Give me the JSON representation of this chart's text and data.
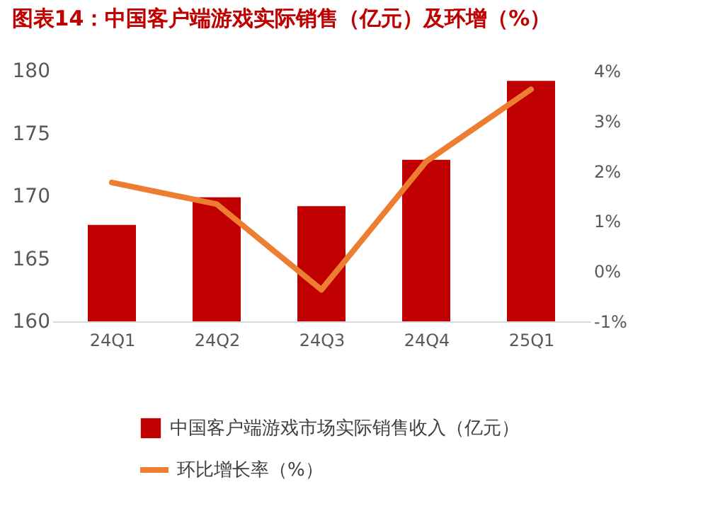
{
  "chart_data": {
    "type": "bar",
    "title": "图表14：中国客户端游戏实际销售（亿元）及环增（%）",
    "categories": [
      "24Q1",
      "24Q2",
      "24Q3",
      "24Q4",
      "25Q1"
    ],
    "series": [
      {
        "name": "中国客户端游戏市场实际销售收入（亿元）",
        "color": "#c00000",
        "values": [
          167.7,
          169.9,
          169.2,
          172.9,
          179.2
        ]
      },
      {
        "name": "环比增长率（%）",
        "type": "line",
        "axis": "y2",
        "color": "#ed7d31",
        "values": [
          1.77,
          1.34,
          -0.37,
          2.19,
          3.63
        ]
      }
    ],
    "ylim": [
      160,
      180
    ],
    "yticks": [
      160,
      165,
      170,
      175,
      180
    ],
    "y2lim": [
      -1,
      4
    ],
    "y2ticks": [
      {
        "value": -1,
        "label": "-1%"
      },
      {
        "value": 0,
        "label": "0%"
      },
      {
        "value": 1,
        "label": "1%"
      },
      {
        "value": 2,
        "label": "2%"
      },
      {
        "value": 3,
        "label": "3%"
      },
      {
        "value": 4,
        "label": "4%"
      }
    ],
    "grid": false,
    "legend": "bottom",
    "marker": "none",
    "line_style": "solid"
  }
}
